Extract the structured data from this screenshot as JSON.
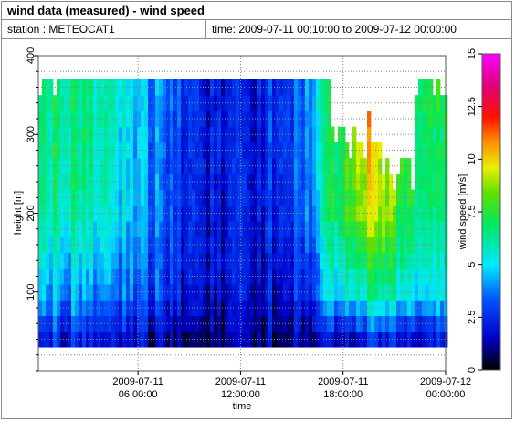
{
  "header": {
    "title": "wind data (measured) - wind speed",
    "station": "station : METEOCAT1",
    "time_range": "time: 2009-07-11 00:10:00 to 2009-07-12 00:00:00"
  },
  "chart_data": {
    "type": "heatmap",
    "title": "wind data (measured) - wind speed",
    "xlabel": "time",
    "ylabel": "height [m]",
    "colorbar_label": "wind speed [m/s]",
    "x_ticks": [
      {
        "line1": "2009-07-11",
        "line2": "06:00:00",
        "hour": 6
      },
      {
        "line1": "2009-07-11",
        "line2": "12:00:00",
        "hour": 12
      },
      {
        "line1": "2009-07-11",
        "line2": "18:00:00",
        "hour": 18
      },
      {
        "line1": "2009-07-12",
        "line2": "00:00:00",
        "hour": 24
      }
    ],
    "x_range_hours": [
      0.1667,
      24
    ],
    "y_ticks": [
      100,
      200,
      300,
      400
    ],
    "ylim": [
      0,
      400
    ],
    "colorbar_ticks": [
      "0",
      "2.5",
      "5",
      "7.5",
      "10",
      "12.5",
      "15"
    ],
    "colorbar_range": [
      0,
      15
    ],
    "grid": true,
    "heights": [
      40,
      60,
      80,
      100,
      120,
      140,
      160,
      180,
      200,
      220,
      240,
      260,
      280,
      300,
      320,
      340,
      360
    ],
    "hours": [
      0.5,
      1.5,
      2.5,
      3.5,
      4.5,
      5.5,
      6.5,
      7.5,
      8.5,
      9.5,
      10.5,
      11.5,
      12.5,
      13.5,
      14.5,
      15.5,
      16.5,
      17.5,
      18.5,
      19.5,
      20.5,
      21.5,
      22.5,
      23.5
    ],
    "speed_profile_by_hour": [
      [
        2.4,
        4.6,
        6.3,
        6.8
      ],
      [
        2.2,
        4.4,
        6.2,
        6.7
      ],
      [
        2.3,
        4.2,
        6.0,
        6.4
      ],
      [
        2.1,
        4.0,
        5.8,
        6.2
      ],
      [
        2.0,
        3.9,
        5.5,
        5.9
      ],
      [
        1.8,
        3.5,
        4.6,
        5.0
      ],
      [
        1.5,
        3.0,
        3.9,
        4.2
      ],
      [
        1.3,
        2.6,
        3.2,
        3.4
      ],
      [
        1.2,
        2.3,
        2.8,
        3.0
      ],
      [
        1.1,
        2.0,
        2.5,
        2.6
      ],
      [
        1.0,
        1.7,
        2.1,
        2.2
      ],
      [
        1.0,
        1.6,
        1.9,
        1.9
      ],
      [
        0.9,
        1.4,
        1.7,
        1.7
      ],
      [
        1.0,
        1.7,
        2.3,
        2.4
      ],
      [
        1.1,
        2.0,
        2.7,
        2.9
      ],
      [
        1.2,
        2.3,
        3.3,
        3.6
      ],
      [
        1.4,
        3.0,
        4.5,
        5.0
      ],
      [
        1.8,
        5.2,
        7.2,
        7.4
      ],
      [
        2.0,
        5.8,
        8.4,
        9.0
      ],
      [
        2.1,
        6.0,
        9.2,
        10.2
      ],
      [
        2.2,
        6.0,
        8.6,
        9.4
      ],
      [
        2.2,
        5.8,
        7.8,
        8.2
      ],
      [
        2.3,
        5.6,
        7.2,
        7.6
      ],
      [
        2.4,
        5.4,
        7.0,
        7.4
      ]
    ]
  }
}
